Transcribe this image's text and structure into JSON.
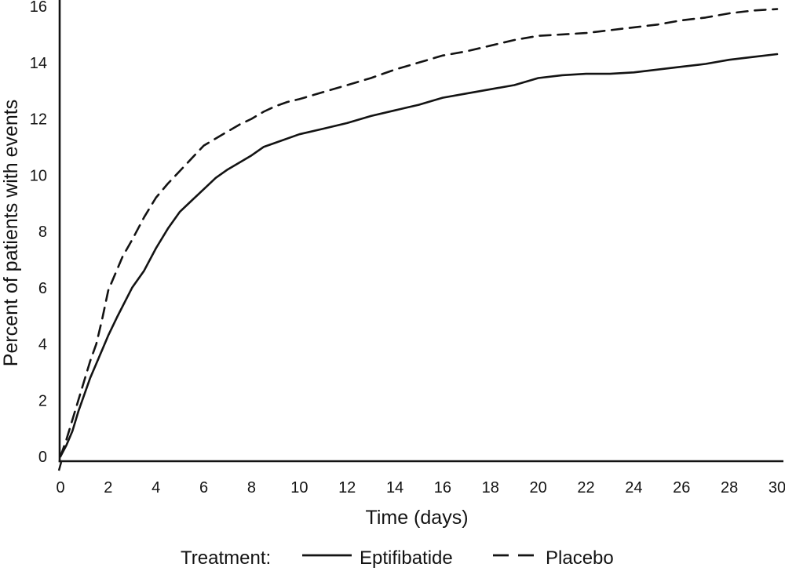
{
  "figure": {
    "background": "#ffffff",
    "ink": "#131313"
  },
  "chart_data": {
    "type": "line",
    "title": "",
    "xlabel": "Time (days)",
    "ylabel": "Percent of patients with events",
    "xlim": [
      0,
      30
    ],
    "ylim": [
      0,
      16
    ],
    "x_ticks": [
      0,
      2,
      4,
      6,
      8,
      10,
      12,
      14,
      16,
      18,
      20,
      22,
      24,
      26,
      28,
      30
    ],
    "y_ticks": [
      0,
      2,
      4,
      6,
      8,
      10,
      12,
      14,
      16
    ],
    "grid": false,
    "legend_title": "Treatment:",
    "legend_position": "bottom",
    "series": [
      {
        "name": "Eptifibatide",
        "style": "solid",
        "color": "#131313",
        "x": [
          0,
          0.25,
          0.5,
          0.75,
          1,
          1.25,
          1.5,
          1.75,
          2,
          2.4,
          3,
          3.5,
          4,
          4.5,
          5,
          5.5,
          6,
          6.5,
          7,
          7.5,
          8,
          8.5,
          9,
          10,
          11,
          12,
          13,
          14,
          14.5,
          15,
          16,
          17,
          18,
          19,
          20,
          21,
          22,
          23,
          24,
          25,
          26,
          27,
          28,
          29,
          30
        ],
        "y": [
          0,
          0.4,
          0.9,
          1.6,
          2.2,
          2.8,
          3.3,
          3.8,
          4.3,
          5.0,
          6.0,
          6.6,
          7.4,
          8.1,
          8.7,
          9.1,
          9.5,
          9.9,
          10.2,
          10.45,
          10.7,
          11.0,
          11.15,
          11.45,
          11.65,
          11.85,
          12.1,
          12.3,
          12.4,
          12.5,
          12.75,
          12.9,
          13.05,
          13.2,
          13.45,
          13.55,
          13.6,
          13.6,
          13.65,
          13.75,
          13.85,
          13.95,
          14.1,
          14.2,
          14.3
        ]
      },
      {
        "name": "Placebo",
        "style": "dashed",
        "color": "#131313",
        "x": [
          0,
          0.25,
          0.5,
          0.75,
          1,
          1.25,
          1.5,
          1.75,
          2,
          2.6,
          3,
          3.5,
          4,
          4.5,
          5,
          5.5,
          6,
          6.5,
          7,
          7.5,
          8,
          8.5,
          9,
          9.5,
          10,
          11,
          12,
          13,
          14,
          15,
          16,
          17,
          18,
          19,
          20,
          21,
          22,
          23,
          24,
          25,
          26,
          27,
          28,
          29,
          30
        ],
        "y": [
          0,
          0.6,
          1.3,
          2.0,
          2.7,
          3.4,
          4.0,
          4.9,
          5.9,
          7.1,
          7.7,
          8.5,
          9.2,
          9.7,
          10.15,
          10.6,
          11.05,
          11.3,
          11.55,
          11.8,
          12.0,
          12.25,
          12.45,
          12.6,
          12.7,
          12.95,
          13.2,
          13.45,
          13.75,
          14.0,
          14.25,
          14.4,
          14.6,
          14.8,
          14.95,
          15.0,
          15.05,
          15.15,
          15.25,
          15.35,
          15.5,
          15.6,
          15.75,
          15.85,
          15.9
        ]
      }
    ]
  }
}
